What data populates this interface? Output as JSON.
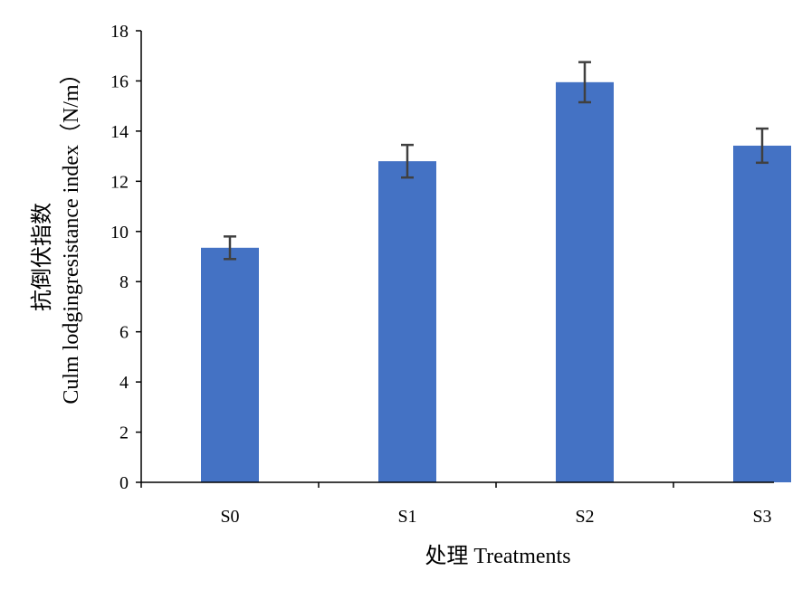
{
  "chart_data": {
    "type": "bar",
    "categories": [
      "S0",
      "S1",
      "S2",
      "S3"
    ],
    "values": [
      9.35,
      12.8,
      15.95,
      13.42
    ],
    "errors": [
      0.45,
      0.65,
      0.8,
      0.68
    ],
    "xlabel": "处理 Treatments",
    "ylabel": "抗倒伏指数",
    "ylabel_line2": "Culm lodgingresistance index（N/m）",
    "ylim": [
      0,
      18
    ],
    "yticks": [
      "0",
      "2",
      "4",
      "6",
      "8",
      "10",
      "12",
      "14",
      "16",
      "18"
    ],
    "grid": false,
    "legend": "none"
  },
  "colors": {
    "bar": "#4472C4",
    "error_bar": "#404040",
    "axis": "#000000"
  }
}
